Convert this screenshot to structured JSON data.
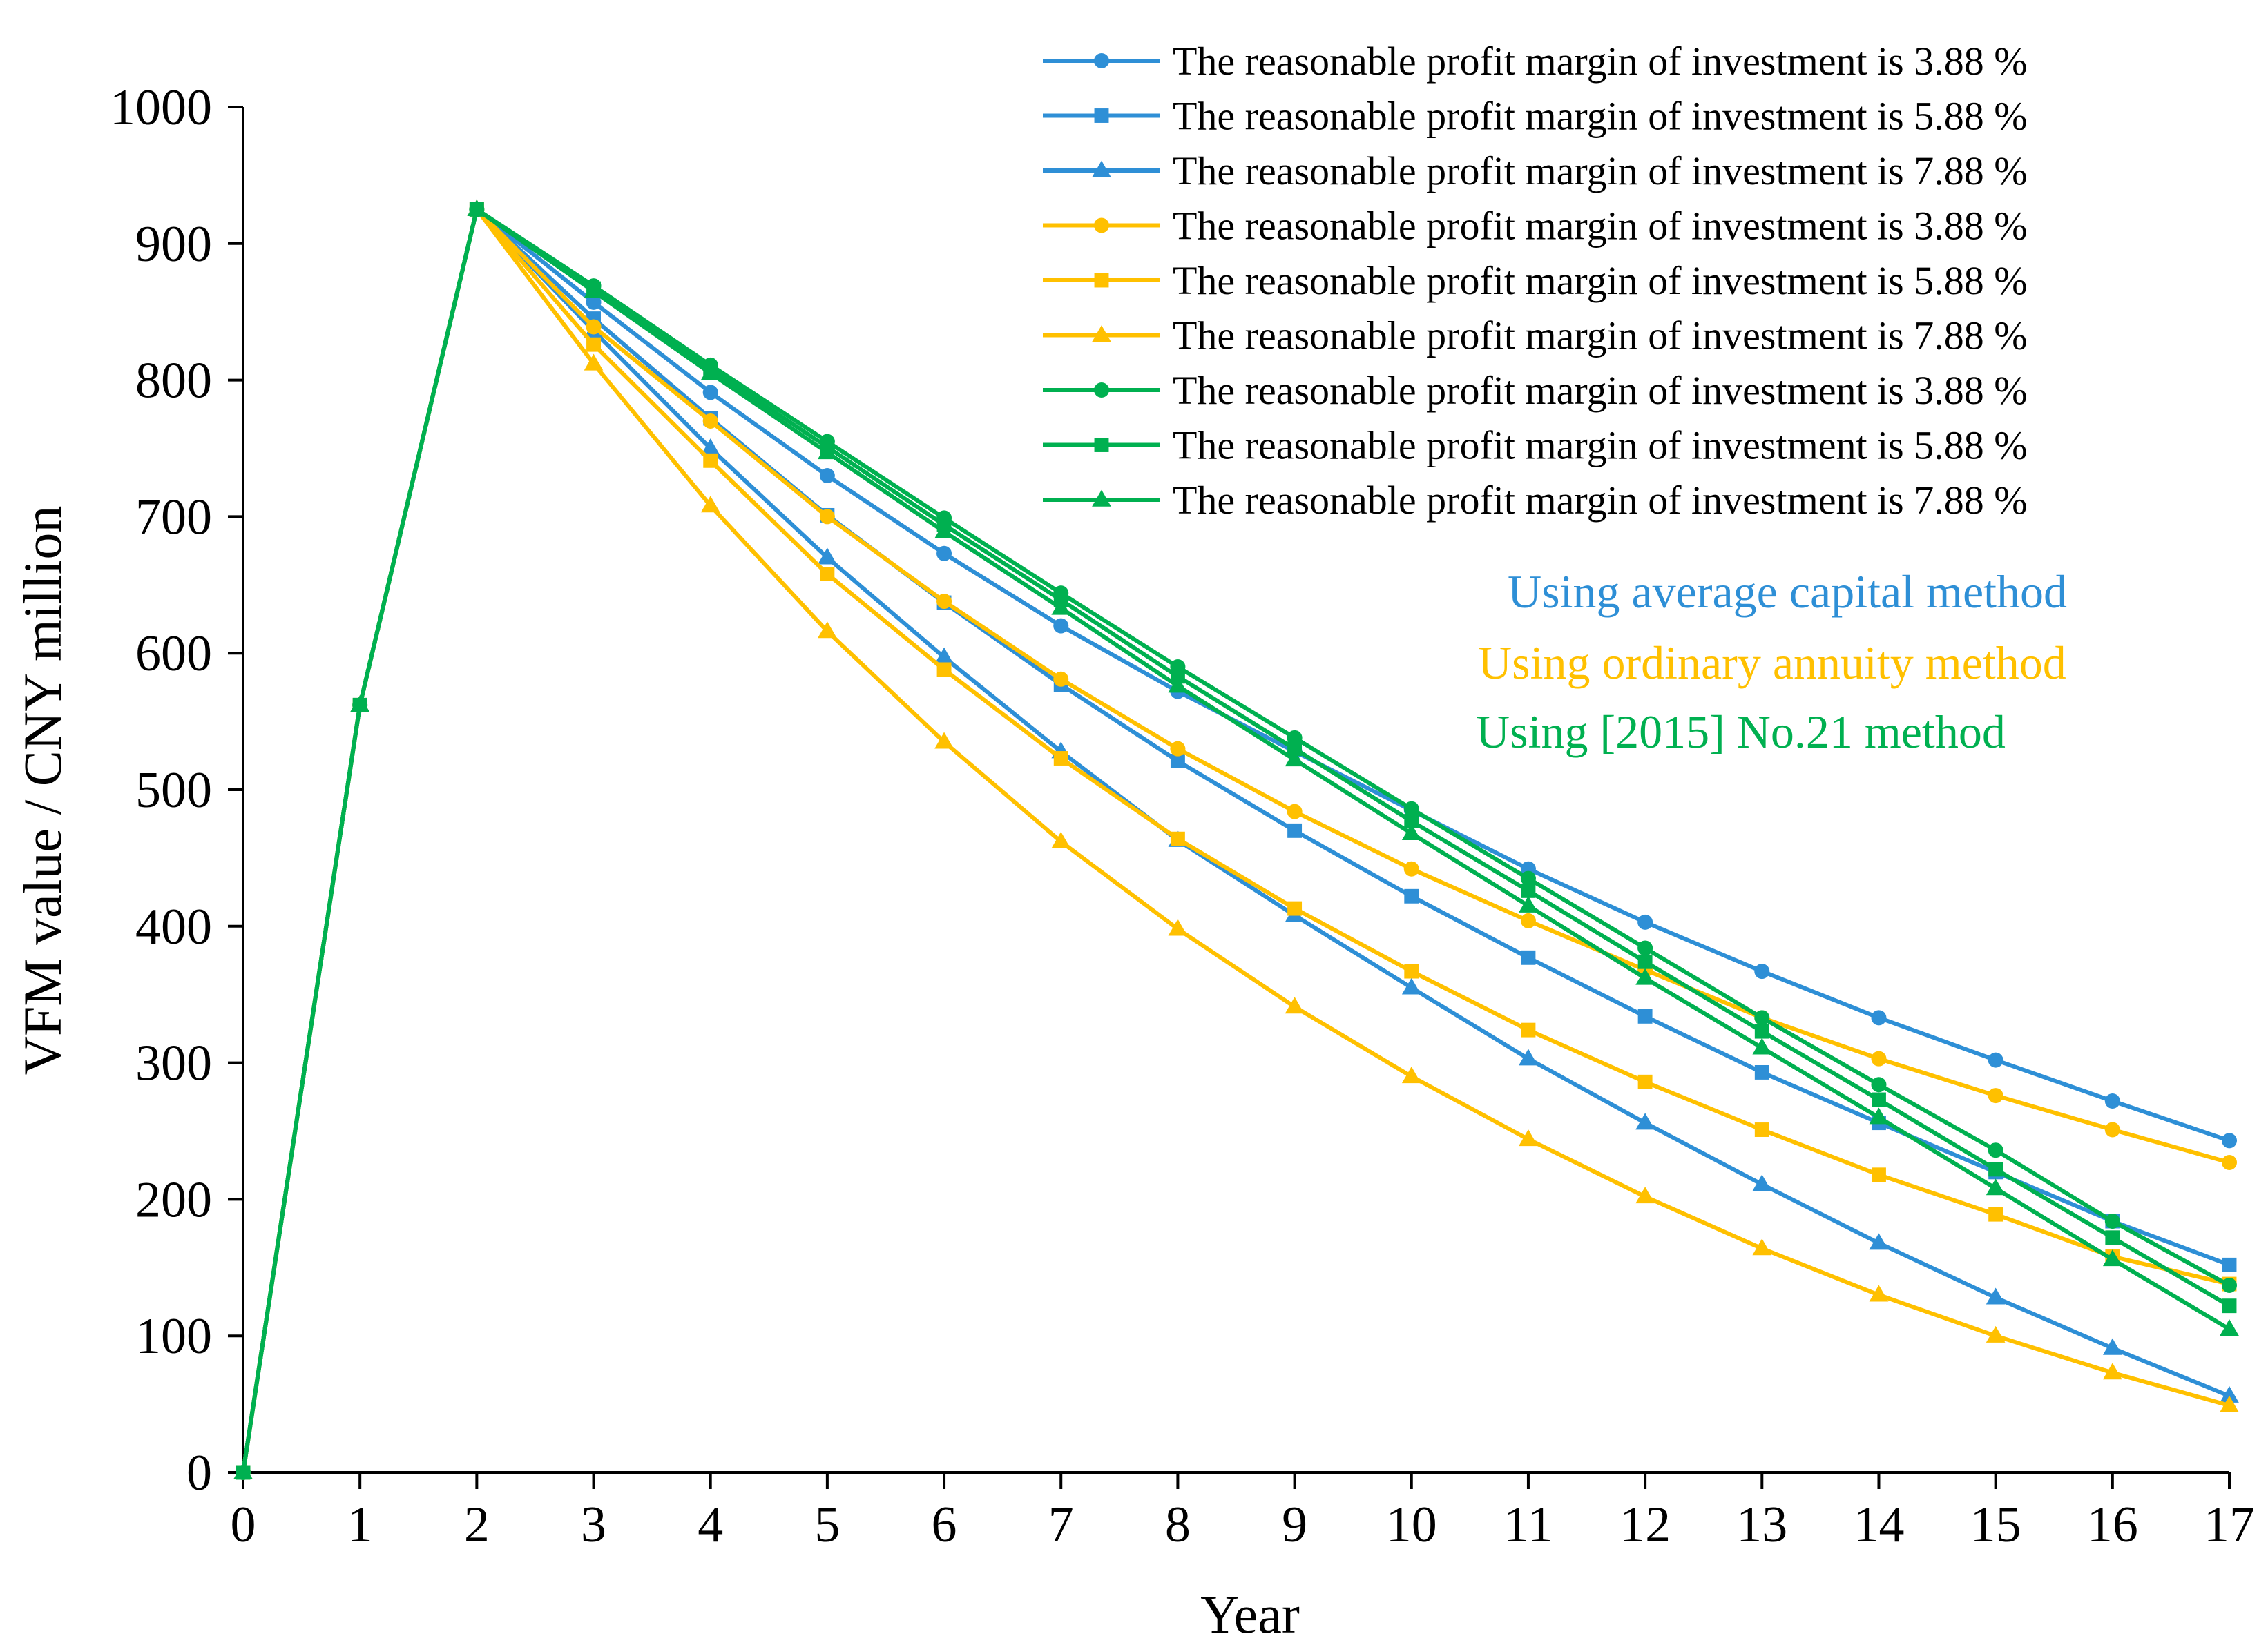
{
  "chart_data": {
    "type": "line",
    "title": "",
    "xlabel": "Year",
    "ylabel": "VFM value / CNY million",
    "xlim": [
      0,
      17
    ],
    "ylim": [
      0,
      1000
    ],
    "x_ticks": [
      "0",
      "1",
      "2",
      "3",
      "4",
      "5",
      "6",
      "7",
      "8",
      "9",
      "10",
      "11",
      "12",
      "13",
      "14",
      "15",
      "16",
      "17"
    ],
    "y_ticks": [
      "0",
      "100",
      "200",
      "300",
      "400",
      "500",
      "600",
      "700",
      "800",
      "900",
      "1000"
    ],
    "grid": false,
    "legend_position": "top-right",
    "colors": {
      "blue": "#2E8FD6",
      "yellow": "#FFC000",
      "green": "#00B050"
    },
    "method_labels": [
      {
        "text": "Using average capital method",
        "color": "#2E8FD6"
      },
      {
        "text": "Using ordinary annuity method",
        "color": "#FFC000"
      },
      {
        "text": "Using [2015] No.21 method",
        "color": "#00B050"
      }
    ],
    "x": [
      0,
      1,
      2,
      3,
      4,
      5,
      6,
      7,
      8,
      9,
      10,
      11,
      12,
      13,
      14,
      15,
      16,
      17
    ],
    "series": [
      {
        "name": "The reasonable profit margin of investment is 3.88 %",
        "group": "blue",
        "marker": "circle",
        "values": [
          0,
          562,
          925,
          857,
          791,
          730,
          673,
          620,
          572,
          528,
          485,
          442,
          403,
          367,
          333,
          302,
          272,
          243
        ]
      },
      {
        "name": "The reasonable profit margin of investment is 5.88 %",
        "group": "blue",
        "marker": "square",
        "values": [
          0,
          562,
          925,
          845,
          772,
          701,
          637,
          577,
          521,
          470,
          422,
          377,
          334,
          293,
          256,
          220,
          184,
          152
        ]
      },
      {
        "name": "The reasonable profit margin of investment is 7.88 %",
        "group": "blue",
        "marker": "triangle",
        "values": [
          0,
          562,
          925,
          836,
          750,
          670,
          597,
          528,
          463,
          408,
          355,
          303,
          256,
          211,
          168,
          128,
          91,
          56
        ]
      },
      {
        "name": "The reasonable profit margin of investment is 3.88 %",
        "group": "yellow",
        "marker": "circle",
        "values": [
          0,
          562,
          925,
          839,
          770,
          700,
          638,
          581,
          530,
          484,
          442,
          404,
          368,
          333,
          303,
          276,
          251,
          227
        ]
      },
      {
        "name": "The reasonable profit margin of investment is 5.88 %",
        "group": "yellow",
        "marker": "square",
        "values": [
          0,
          562,
          925,
          826,
          741,
          658,
          588,
          523,
          464,
          413,
          367,
          324,
          286,
          251,
          218,
          189,
          158,
          138
        ]
      },
      {
        "name": "The reasonable profit margin of investment is 7.88 %",
        "group": "yellow",
        "marker": "triangle",
        "values": [
          0,
          562,
          925,
          812,
          708,
          616,
          535,
          462,
          398,
          341,
          290,
          244,
          202,
          164,
          130,
          100,
          73,
          49
        ]
      },
      {
        "name": "The reasonable profit margin of investment is 3.88 %",
        "group": "green",
        "marker": "circle",
        "values": [
          0,
          562,
          925,
          869,
          811,
          755,
          699,
          644,
          590,
          538,
          486,
          435,
          384,
          333,
          284,
          236,
          184,
          137
        ]
      },
      {
        "name": "The reasonable profit margin of investment is 5.88 %",
        "group": "green",
        "marker": "square",
        "values": [
          0,
          562,
          925,
          867,
          808,
          751,
          694,
          639,
          583,
          530,
          477,
          426,
          374,
          323,
          273,
          222,
          172,
          122
        ]
      },
      {
        "name": "The reasonable profit margin of investment is 7.88 %",
        "group": "green",
        "marker": "triangle",
        "values": [
          0,
          562,
          925,
          865,
          805,
          747,
          689,
          633,
          576,
          522,
          468,
          415,
          362,
          311,
          260,
          208,
          156,
          105
        ]
      }
    ]
  }
}
